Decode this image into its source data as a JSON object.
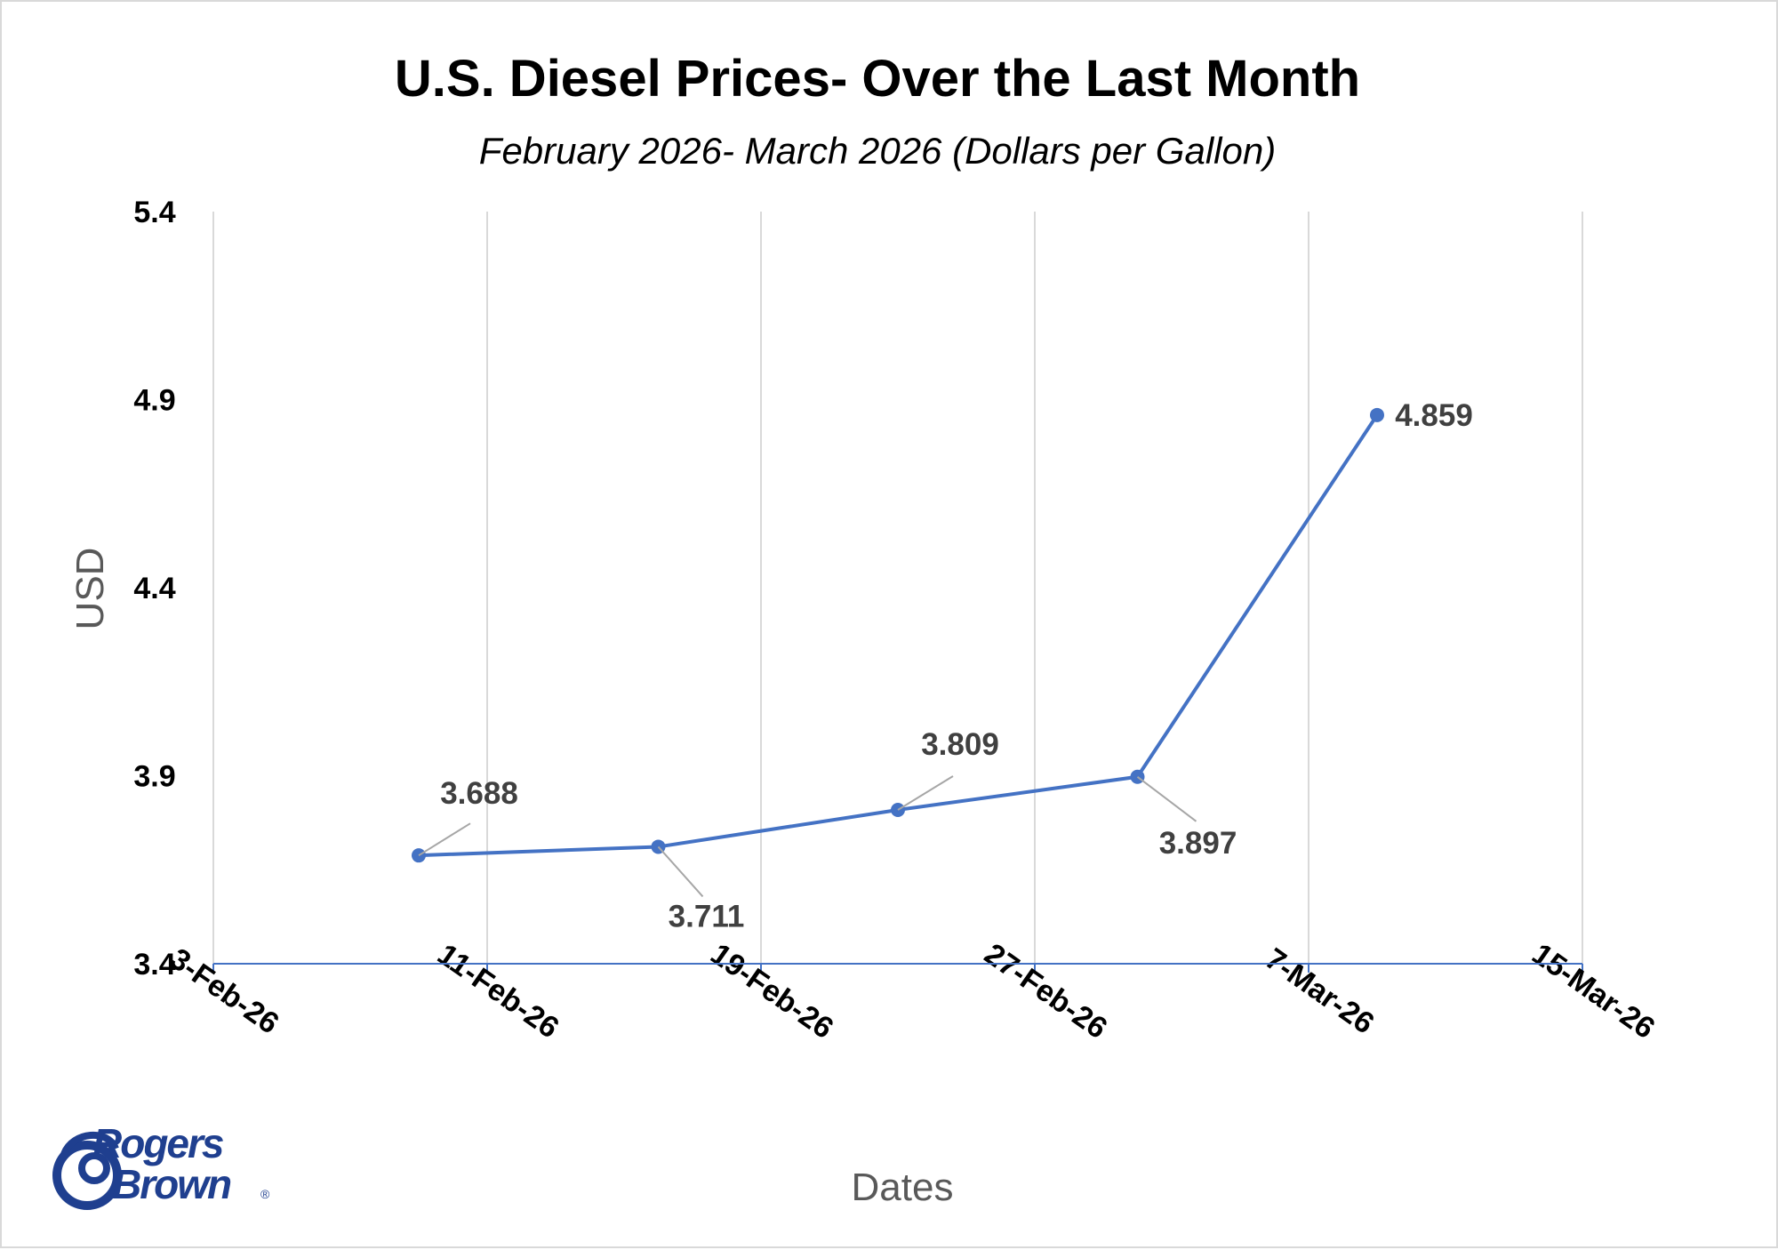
{
  "chart_data": {
    "type": "line",
    "title": "U.S. Diesel Prices- Over the Last Month",
    "subtitle": "February 2026- March 2026 (Dollars per Gallon)",
    "xlabel": "Dates",
    "ylabel": "USD",
    "x_tick_labels": [
      "3-Feb-26",
      "11-Feb-26",
      "19-Feb-26",
      "27-Feb-26",
      "7-Mar-26",
      "15-Mar-26"
    ],
    "x_tick_dates": [
      "2026-02-03",
      "2026-02-11",
      "2026-02-19",
      "2026-02-27",
      "2026-03-07",
      "2026-03-15"
    ],
    "y_ticks": [
      3.4,
      3.9,
      4.4,
      4.9,
      5.4
    ],
    "y_tick_labels": [
      "3.4",
      "3.9",
      "4.4",
      "4.9",
      "5.4"
    ],
    "ylim": [
      3.4,
      5.4
    ],
    "xlim": [
      "2026-02-03",
      "2026-03-15"
    ],
    "grid": "vertical",
    "series": [
      {
        "color": "#4472c4",
        "x": [
          "2026-02-09",
          "2026-02-16",
          "2026-02-23",
          "2026-03-02",
          "2026-03-09"
        ],
        "values": [
          3.688,
          3.711,
          3.809,
          3.897,
          4.859
        ],
        "labels": [
          "3.688",
          "3.711",
          "3.809",
          "3.897",
          "4.859"
        ]
      }
    ]
  },
  "logo": {
    "line1": "Rogers",
    "line2": "Brown",
    "mark": "®"
  }
}
